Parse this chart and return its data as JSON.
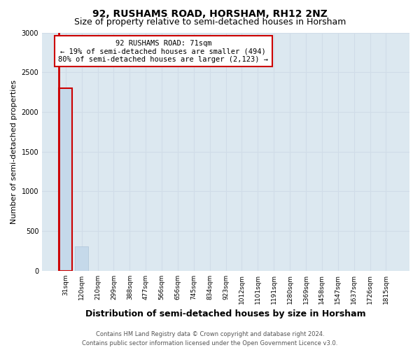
{
  "title": "92, RUSHAMS ROAD, HORSHAM, RH12 2NZ",
  "subtitle": "Size of property relative to semi-detached houses in Horsham",
  "xlabel": "Distribution of semi-detached houses by size in Horsham",
  "ylabel": "Number of semi-detached properties",
  "categories": [
    "31sqm",
    "120sqm",
    "210sqm",
    "299sqm",
    "388sqm",
    "477sqm",
    "566sqm",
    "656sqm",
    "745sqm",
    "834sqm",
    "923sqm",
    "1012sqm",
    "1101sqm",
    "1191sqm",
    "1280sqm",
    "1369sqm",
    "1458sqm",
    "1547sqm",
    "1637sqm",
    "1726sqm",
    "1815sqm"
  ],
  "values": [
    2300,
    310,
    0,
    0,
    0,
    0,
    0,
    0,
    0,
    0,
    0,
    0,
    0,
    0,
    0,
    0,
    0,
    0,
    0,
    0,
    0
  ],
  "bar_color": "#c5d9ea",
  "bar_edge_color": "#adc4d8",
  "highlight_bar_index": 0,
  "highlight_color": "#cc0000",
  "ylim": [
    0,
    3000
  ],
  "yticks": [
    0,
    500,
    1000,
    1500,
    2000,
    2500,
    3000
  ],
  "annotation_title": "92 RUSHAMS ROAD: 71sqm",
  "annotation_line1": "← 19% of semi-detached houses are smaller (494)",
  "annotation_line2": "80% of semi-detached houses are larger (2,123) →",
  "footer_line1": "Contains HM Land Registry data © Crown copyright and database right 2024.",
  "footer_line2": "Contains public sector information licensed under the Open Government Licence v3.0.",
  "grid_color": "#d0dce8",
  "background_color": "#dce8f0",
  "title_fontsize": 10,
  "subtitle_fontsize": 9,
  "tick_fontsize": 6.5,
  "ylabel_fontsize": 8,
  "xlabel_fontsize": 9
}
